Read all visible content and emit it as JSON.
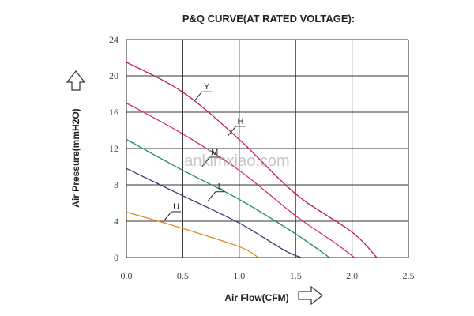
{
  "chart_data": {
    "type": "line",
    "title": "P&Q CURVE(AT RATED VOLTAGE):",
    "xlabel": "Air Flow(CFM)",
    "ylabel": "Air Pressure(mmH2O)",
    "xlim": [
      0,
      2.5
    ],
    "ylim": [
      0,
      24
    ],
    "x_ticks": [
      "0.0",
      "0.5",
      "1.0",
      "1.5",
      "2.0",
      "2.5"
    ],
    "y_ticks": [
      "0",
      "4",
      "8",
      "12",
      "16",
      "20",
      "24"
    ],
    "grid": true,
    "watermark": "ankimxiao.com",
    "series": [
      {
        "name": "Y",
        "color": "#c2185b",
        "points": [
          [
            0.0,
            21.5
          ],
          [
            0.5,
            18.2
          ],
          [
            1.0,
            13.0
          ],
          [
            1.5,
            7.0
          ],
          [
            2.0,
            2.8
          ],
          [
            2.22,
            0.0
          ]
        ]
      },
      {
        "name": "H",
        "color": "#d0306f",
        "points": [
          [
            0.0,
            17.0
          ],
          [
            0.5,
            13.6
          ],
          [
            1.0,
            9.6
          ],
          [
            1.5,
            4.6
          ],
          [
            1.85,
            1.6
          ],
          [
            2.02,
            0.0
          ]
        ]
      },
      {
        "name": "M",
        "color": "#1f8a5e",
        "points": [
          [
            0.0,
            13.0
          ],
          [
            0.5,
            9.6
          ],
          [
            1.0,
            6.4
          ],
          [
            1.5,
            2.6
          ],
          [
            1.8,
            0.0
          ]
        ]
      },
      {
        "name": "L",
        "color": "#3b3b6e",
        "points": [
          [
            0.0,
            9.8
          ],
          [
            0.5,
            6.8
          ],
          [
            1.0,
            3.8
          ],
          [
            1.4,
            0.8
          ],
          [
            1.55,
            0.0
          ]
        ]
      },
      {
        "name": "U",
        "color": "#e08a1e",
        "points": [
          [
            0.0,
            5.0
          ],
          [
            0.5,
            3.2
          ],
          [
            1.0,
            1.2
          ],
          [
            1.17,
            0.0
          ]
        ]
      }
    ],
    "label_anchors": [
      {
        "name": "Y",
        "x": 0.6,
        "y": 17.2
      },
      {
        "name": "H",
        "x": 0.9,
        "y": 13.4
      },
      {
        "name": "M",
        "x": 0.67,
        "y": 10.0
      },
      {
        "name": "L",
        "x": 0.72,
        "y": 6.2
      },
      {
        "name": "U",
        "x": 0.33,
        "y": 4.0
      }
    ]
  }
}
